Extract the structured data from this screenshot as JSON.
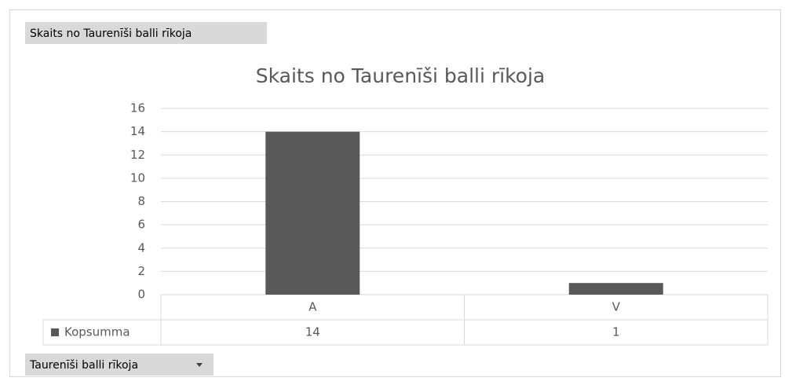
{
  "value_field_button": "Skaits no Taurenīši balli rīkoja",
  "axis_field_button": "Taurenīši balli rīkoja",
  "chart_data": {
    "type": "bar",
    "title": "Skaits no Taurenīši balli rīkoja",
    "categories": [
      "A",
      "V"
    ],
    "series": [
      {
        "name": "Kopsumma",
        "color": "#595959",
        "values": [
          14,
          1
        ]
      }
    ],
    "ylim": [
      0,
      16
    ],
    "yticks": [
      0,
      2,
      4,
      6,
      8,
      10,
      12,
      14,
      16
    ],
    "grid": true,
    "data_table": true
  }
}
